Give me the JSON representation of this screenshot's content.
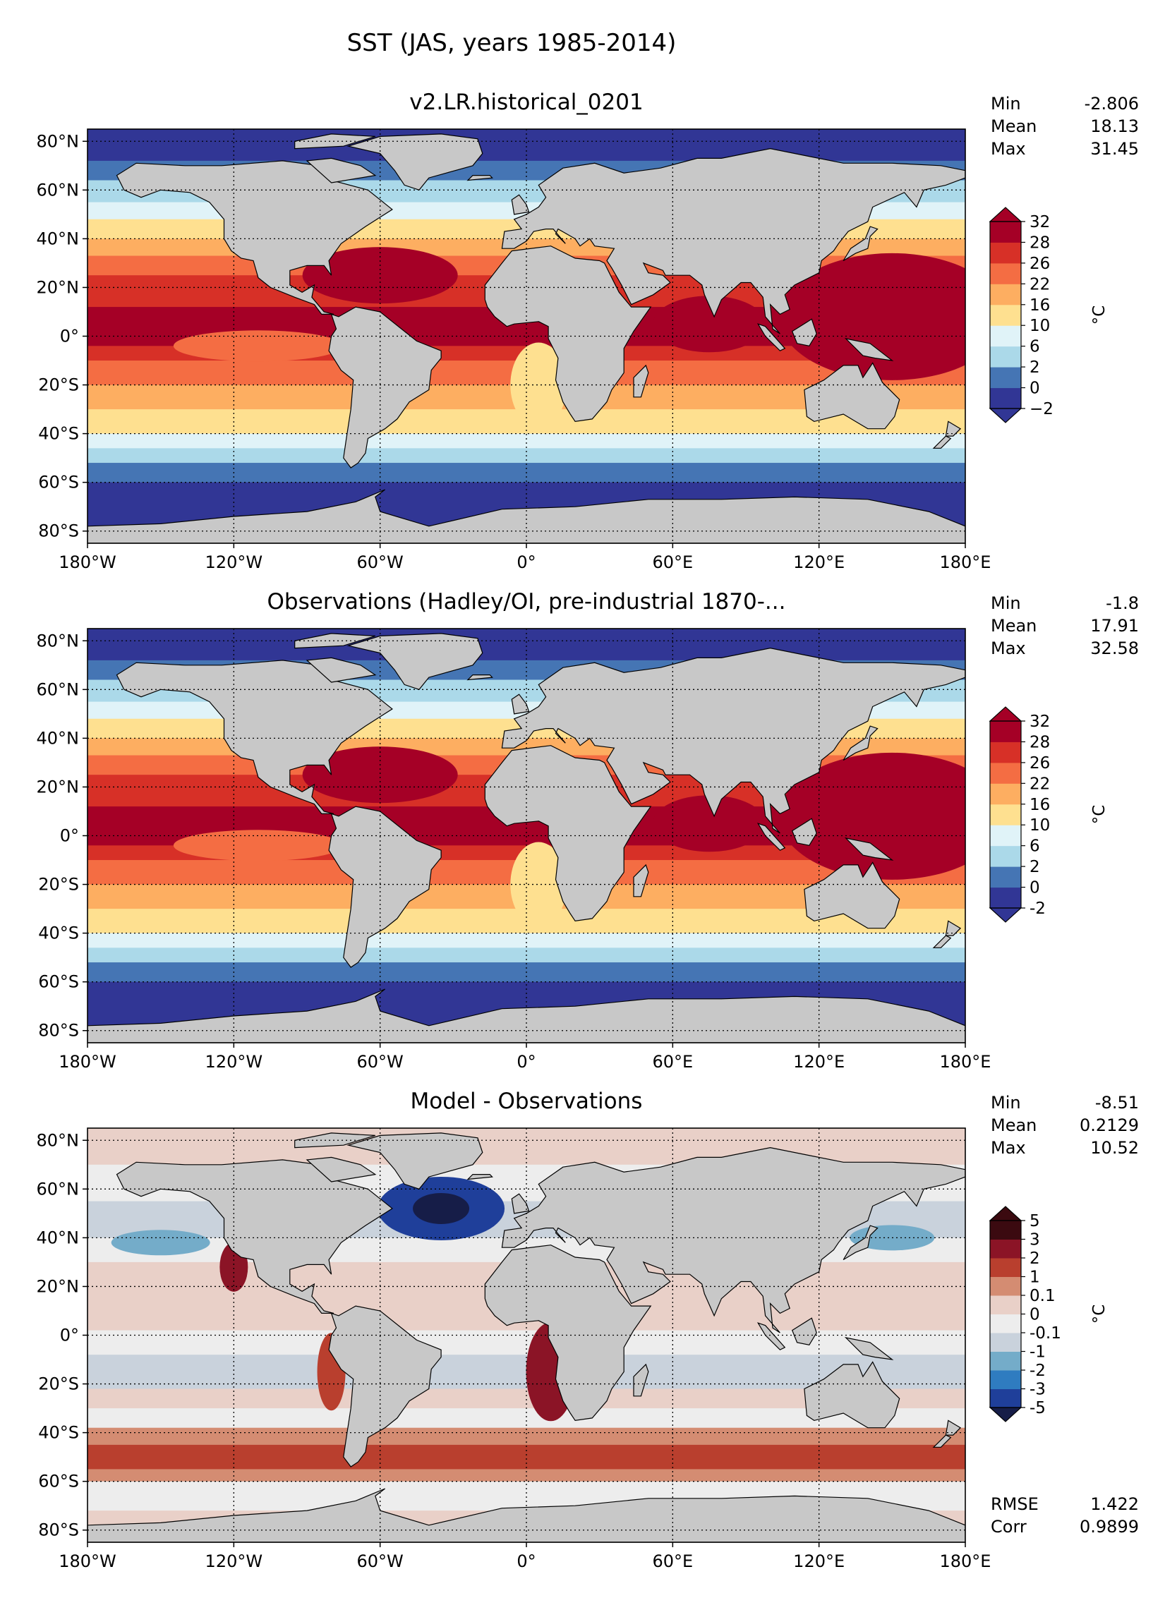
{
  "figure": {
    "title": "SST (JAS, years 1985-2014)"
  },
  "colors": {
    "land": "#c8c8c8",
    "sst_levels": [
      "#313695",
      "#4575b4",
      "#abd9e9",
      "#e0f3f8",
      "#fee090",
      "#fdae61",
      "#f46d43",
      "#d73027",
      "#a50026"
    ],
    "diff_levels": [
      "#161d48",
      "#1f3f9a",
      "#2f7cc0",
      "#74acc9",
      "#c9d2dc",
      "#ededed",
      "#e9d0c8",
      "#d48c72",
      "#b93f2e",
      "#8b1426",
      "#3b0a10"
    ]
  },
  "chart_data": [
    {
      "type": "heatmap",
      "title": "v2.LR.historical_0201",
      "xticks": [
        "180°W",
        "120°W",
        "60°W",
        "0°",
        "60°E",
        "120°E",
        "180°E"
      ],
      "yticks": [
        "80°N",
        "60°N",
        "40°N",
        "20°N",
        "0°",
        "20°S",
        "40°S",
        "60°S",
        "80°S"
      ],
      "xlim": [
        -180,
        180
      ],
      "ylim": [
        -85,
        85
      ],
      "grid": true,
      "stats": [
        {
          "label": "Min",
          "value": "-2.806"
        },
        {
          "label": "Mean",
          "value": "18.13"
        },
        {
          "label": "Max",
          "value": "31.45"
        }
      ],
      "colorbar": {
        "levels": [
          "−2",
          "0",
          "2",
          "6",
          "10",
          "16",
          "22",
          "26",
          "28",
          "32"
        ],
        "unit": "°C",
        "extend": "both"
      }
    },
    {
      "type": "heatmap",
      "title": "Observations (Hadley/OI, pre-industrial 1870-...",
      "xticks": [
        "180°W",
        "120°W",
        "60°W",
        "0°",
        "60°E",
        "120°E",
        "180°E"
      ],
      "yticks": [
        "80°N",
        "60°N",
        "40°N",
        "20°N",
        "0°",
        "20°S",
        "40°S",
        "60°S",
        "80°S"
      ],
      "xlim": [
        -180,
        180
      ],
      "ylim": [
        -85,
        85
      ],
      "grid": true,
      "stats": [
        {
          "label": "Min",
          "value": "-1.8"
        },
        {
          "label": "Mean",
          "value": "17.91"
        },
        {
          "label": "Max",
          "value": "32.58"
        }
      ],
      "colorbar": {
        "levels": [
          "-2",
          "0",
          "2",
          "6",
          "10",
          "16",
          "22",
          "26",
          "28",
          "32"
        ],
        "unit": "°C",
        "extend": "both"
      }
    },
    {
      "type": "heatmap",
      "title": "Model - Observations",
      "xticks": [
        "180°W",
        "120°W",
        "60°W",
        "0°",
        "60°E",
        "120°E",
        "180°E"
      ],
      "yticks": [
        "80°N",
        "60°N",
        "40°N",
        "20°N",
        "0°",
        "20°S",
        "40°S",
        "60°S",
        "80°S"
      ],
      "xlim": [
        -180,
        180
      ],
      "ylim": [
        -85,
        85
      ],
      "grid": true,
      "stats": [
        {
          "label": "Min",
          "value": "-8.51"
        },
        {
          "label": "Mean",
          "value": "0.2129"
        },
        {
          "label": "Max",
          "value": "10.52"
        }
      ],
      "extra_stats": [
        {
          "label": "RMSE",
          "value": "1.422"
        },
        {
          "label": "Corr",
          "value": "0.9899"
        }
      ],
      "colorbar": {
        "levels": [
          "-5",
          "-3",
          "-2",
          "-1",
          "-0.1",
          "0",
          "0.1",
          "1",
          "2",
          "3",
          "5"
        ],
        "unit": "°C",
        "extend": "both"
      }
    }
  ]
}
